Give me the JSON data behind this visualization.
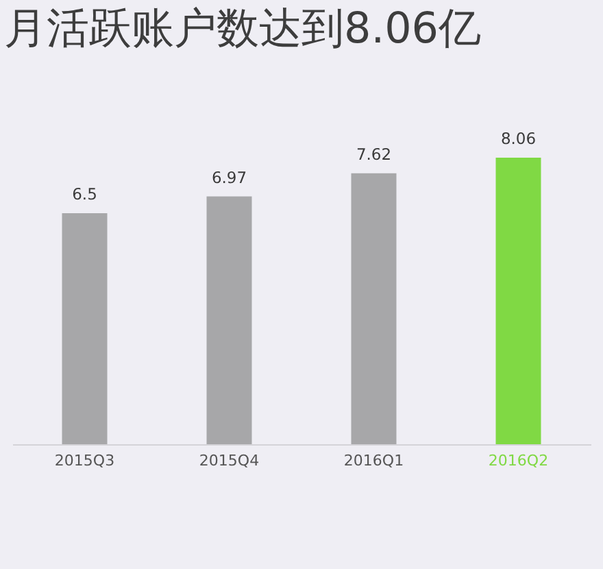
{
  "chart_data": {
    "type": "bar",
    "title": "月活跃账户数达到8.06亿",
    "categories": [
      "2015Q3",
      "2015Q4",
      "2016Q1",
      "2016Q2"
    ],
    "values": [
      6.5,
      6.97,
      7.62,
      8.06
    ],
    "colors": [
      "#a7a7a9",
      "#a7a7a9",
      "#a7a7a9",
      "#80d944"
    ],
    "data_labels": true
  }
}
